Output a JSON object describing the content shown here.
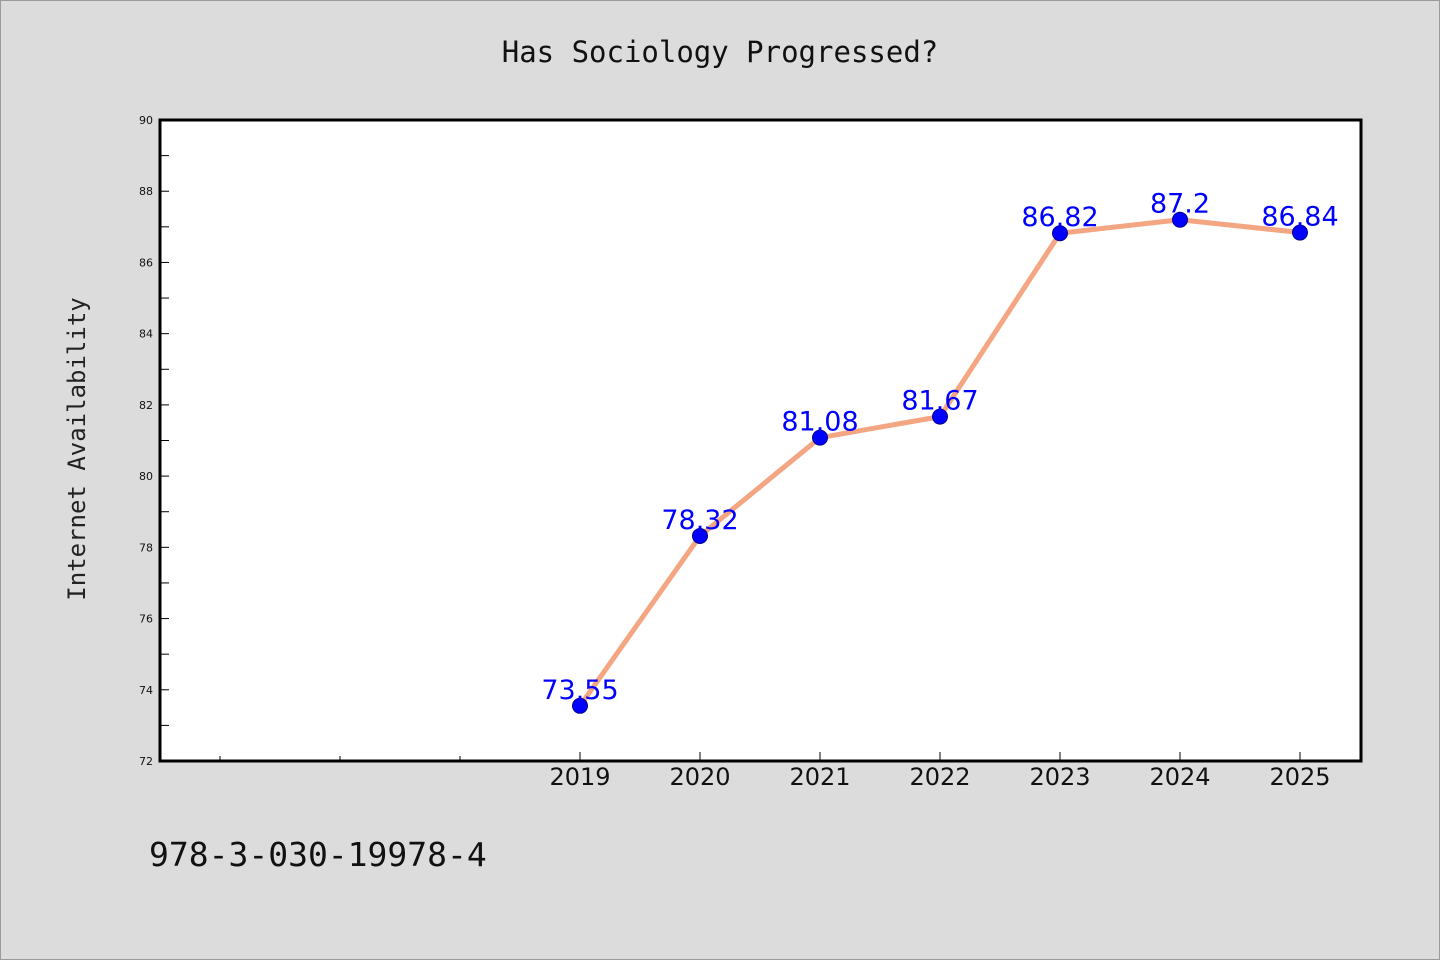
{
  "chart_data": {
    "type": "line",
    "title": "Has Sociology Progressed?",
    "xlabel": "",
    "ylabel": "Internet Availability",
    "x": [
      "2019",
      "2020",
      "2021",
      "2022",
      "2023",
      "2024",
      "2025"
    ],
    "values": [
      73.55,
      78.32,
      81.08,
      81.67,
      86.82,
      87.2,
      86.84
    ],
    "data_labels": [
      "73.55",
      "78.32",
      "81.08",
      "81.67",
      "86.82",
      "87.2",
      "86.84"
    ],
    "ylim": [
      72,
      90
    ],
    "yticks": [
      "72",
      "74",
      "76",
      "78",
      "80",
      "82",
      "84",
      "86",
      "88",
      "90"
    ],
    "line_color": "#f4a582",
    "marker_color": "#0000ff",
    "label_color": "#0000ff",
    "grid": false,
    "legend": "none"
  },
  "footer": {
    "text": "978-3-030-19978-4"
  }
}
